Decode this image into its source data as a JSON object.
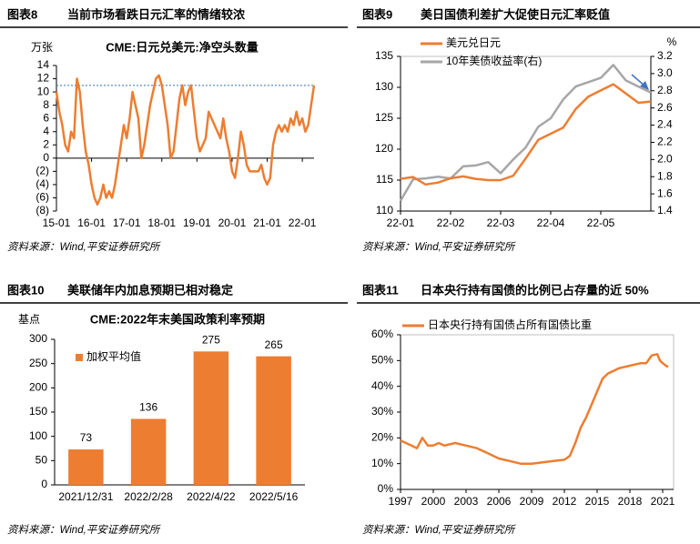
{
  "panels": [
    {
      "label": "图表8",
      "title": "当前市场看跌日元汇率的情绪较浓",
      "source": "资料来源：Wind,平安证券研究所"
    },
    {
      "label": "图表9",
      "title": "美日国债利差扩大促使日元汇率贬值",
      "source": "资料来源：Wind,平安证券研究所"
    },
    {
      "label": "图表10",
      "title": "美联储年内加息预期已相对稳定",
      "source": "资料来源：Wind,平安证券研究所"
    },
    {
      "label": "图表11",
      "title": "日本央行持有国债的比例已占存量的近 50%",
      "source": "资料来源：Wind,平安证券研究所"
    }
  ],
  "chart_data": [
    {
      "type": "line",
      "title": "CME:日元兑美元:净空头数量",
      "y_label": "万张",
      "color": "#ed7d31",
      "negative_tick_color": "#c00000",
      "reference_line": {
        "value": 11,
        "color": "#2e75b6"
      },
      "x": [
        "15-01",
        null,
        null,
        null,
        null,
        null,
        null,
        null,
        null,
        null,
        null,
        null,
        "16-01",
        null,
        null,
        null,
        null,
        null,
        null,
        null,
        null,
        null,
        null,
        null,
        "17-01",
        null,
        null,
        null,
        null,
        null,
        null,
        null,
        null,
        null,
        null,
        null,
        "18-01",
        null,
        null,
        null,
        null,
        null,
        null,
        null,
        null,
        null,
        null,
        null,
        "19-01",
        null,
        null,
        null,
        null,
        null,
        null,
        null,
        null,
        null,
        null,
        null,
        "20-01",
        null,
        null,
        null,
        null,
        null,
        null,
        null,
        null,
        null,
        null,
        null,
        "21-01",
        null,
        null,
        null,
        null,
        null,
        null,
        null,
        null,
        null,
        null,
        null,
        "22-01",
        null,
        null,
        null,
        null
      ],
      "values": [
        10,
        7,
        5,
        2,
        1,
        4,
        3,
        12,
        10,
        5,
        1,
        -1,
        -4,
        -6,
        -7,
        -6,
        -4,
        -6,
        -5,
        -6,
        -4,
        -1,
        2,
        5,
        3,
        6,
        10,
        8,
        6,
        0,
        2,
        5,
        8,
        10,
        12,
        12.5,
        11,
        8,
        5,
        0,
        1,
        5,
        9,
        11,
        8,
        10,
        11,
        7,
        3,
        1,
        2,
        3,
        7,
        6,
        5,
        4,
        3,
        6,
        3,
        1,
        -2,
        -3,
        0,
        4,
        2,
        -1,
        -2,
        -2,
        -2,
        -2,
        -1,
        -3,
        -4,
        -3,
        2,
        4,
        5,
        4,
        5,
        4,
        6,
        5,
        7,
        5,
        6,
        4,
        5,
        8,
        11
      ],
      "ylim": [
        -8,
        14
      ],
      "yticks": [
        {
          "value": -8,
          "label": "(8)"
        },
        {
          "value": -6,
          "label": "(6)"
        },
        {
          "value": -4,
          "label": "(4)"
        },
        {
          "value": -2,
          "label": "(2)"
        },
        0,
        2,
        4,
        6,
        8,
        10,
        12,
        14
      ]
    },
    {
      "type": "line",
      "y2_label": "%",
      "x": [
        "22-01",
        null,
        null,
        null,
        "22-02",
        null,
        null,
        null,
        "22-03",
        null,
        null,
        null,
        "22-04",
        null,
        null,
        null,
        "22-05",
        null,
        null,
        null,
        null
      ],
      "series": [
        {
          "name": "美元兑日元",
          "color": "#ed7d31",
          "values": [
            115.2,
            115.5,
            114.3,
            114.6,
            115.3,
            115.6,
            115.2,
            115.0,
            115.0,
            115.7,
            118.5,
            121.5,
            122.5,
            123.5,
            126.5,
            128.5,
            129.5,
            130.5,
            129.0,
            127.5,
            127.7
          ]
        },
        {
          "name": "10年美债收益率(右)",
          "color": "#a6a6a6",
          "axis": "y2",
          "values": [
            1.52,
            1.77,
            1.78,
            1.8,
            1.78,
            1.92,
            1.93,
            1.97,
            1.84,
            2.0,
            2.14,
            2.38,
            2.48,
            2.7,
            2.85,
            2.9,
            2.95,
            3.1,
            2.92,
            2.85,
            2.78
          ]
        }
      ],
      "ylim": [
        110,
        135
      ],
      "yticks": [
        110,
        115,
        120,
        125,
        130,
        135
      ],
      "y2lim": [
        1.4,
        3.2
      ],
      "y2ticks": [
        1.4,
        1.6,
        1.8,
        {
          "value": 2,
          "label": "2.0"
        },
        2.2,
        2.4,
        2.6,
        2.8,
        {
          "value": 3,
          "label": "3.0"
        },
        3.2
      ]
    },
    {
      "type": "bar",
      "title": "CME:2022年末美国政策利率预期",
      "y_label": "基点",
      "categories": [
        "2021/12/31",
        "2022/2/28",
        "2022/4/22",
        "2022/5/16"
      ],
      "series": [
        {
          "name": "加权平均值",
          "color": "#ed7d31",
          "values": [
            73,
            136,
            275,
            265
          ]
        }
      ],
      "ylim": [
        0,
        300
      ],
      "yticks": [
        0,
        50,
        100,
        150,
        200,
        250,
        300
      ]
    },
    {
      "type": "line",
      "x": [
        1997,
        1997.5,
        1998,
        1998.5,
        1999,
        1999.5,
        2000,
        2000.5,
        2001,
        2002,
        2003,
        2004,
        2005,
        2006,
        2007,
        2008,
        2009,
        2010,
        2011,
        2012,
        2012.5,
        2013,
        2013.5,
        2014,
        2014.5,
        2015,
        2015.5,
        2016,
        2016.5,
        2017,
        2018,
        2019,
        2019.5,
        2020,
        2020.5,
        2020.75,
        2021,
        2021.3,
        2021.5
      ],
      "series": [
        {
          "name": "日本央行持有国债占所有国债比重",
          "color": "#ed7d31",
          "values": [
            19,
            18,
            17,
            16,
            20,
            17,
            17,
            18,
            17,
            18,
            17,
            16,
            14,
            12,
            11,
            10,
            10,
            10.5,
            11,
            11.5,
            13,
            18,
            24,
            28,
            33,
            38,
            43,
            45,
            46,
            47,
            48,
            49,
            49,
            52,
            52.5,
            50,
            49,
            48,
            47.5
          ]
        }
      ],
      "xlim": [
        1997,
        2022
      ],
      "xticks": [
        1997,
        2000,
        2003,
        2006,
        2009,
        2012,
        2015,
        2018,
        2021
      ],
      "ylim": [
        0,
        60
      ],
      "yticks": [
        {
          "value": 0,
          "label": "0%"
        },
        {
          "value": 10,
          "label": "10%"
        },
        {
          "value": 20,
          "label": "20%"
        },
        {
          "value": 30,
          "label": "30%"
        },
        {
          "value": 40,
          "label": "40%"
        },
        {
          "value": 50,
          "label": "50%"
        },
        {
          "value": 60,
          "label": "60%"
        }
      ]
    }
  ]
}
